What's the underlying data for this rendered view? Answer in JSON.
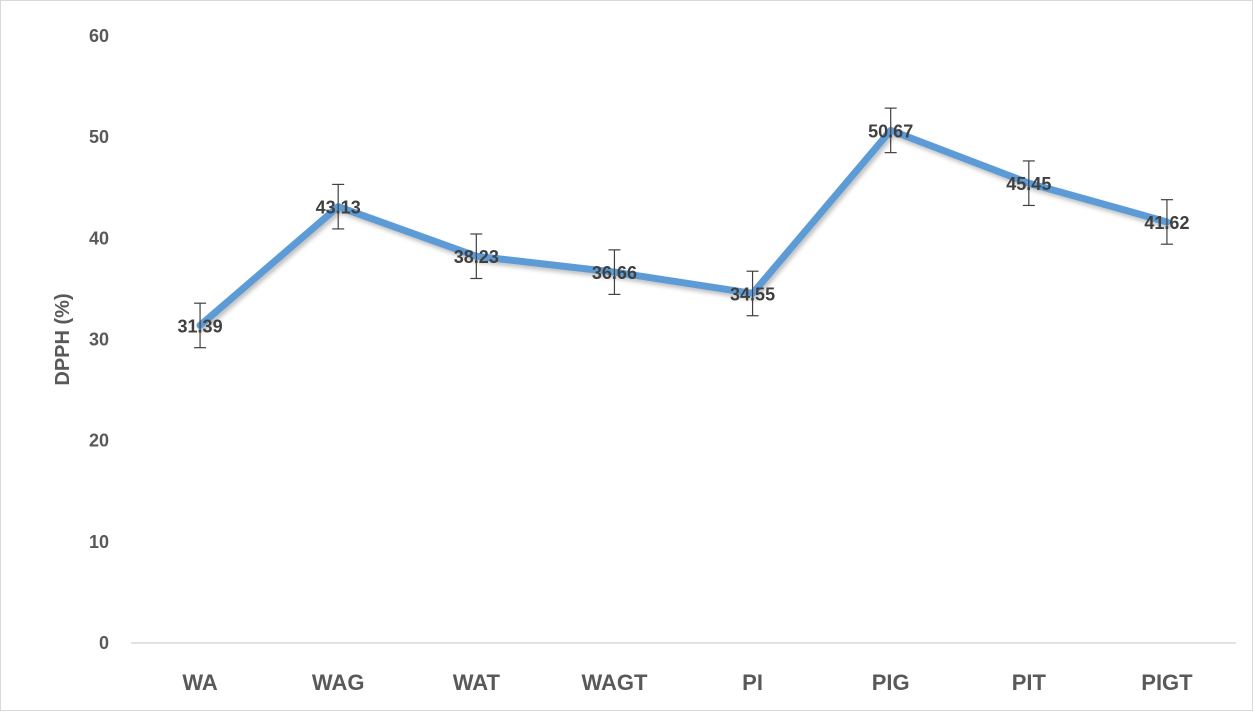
{
  "chart_data": {
    "type": "line",
    "title": "",
    "xlabel": "",
    "ylabel": "DPPH (%)",
    "ylim": [
      0,
      60
    ],
    "yticks": [
      "0",
      "10",
      "20",
      "30",
      "40",
      "50",
      "60"
    ],
    "categories": [
      "WA",
      "WAG",
      "WAT",
      "WAGT",
      "PI",
      "PIG",
      "PIT",
      "PIGT"
    ],
    "series": [
      {
        "values": [
          31.39,
          43.13,
          38.23,
          36.66,
          34.55,
          50.67,
          45.45,
          41.62
        ],
        "labels": [
          "31.39",
          "43.13",
          "38.23",
          "36.66",
          "34.55",
          "50.67",
          "45.45",
          "41.62"
        ],
        "error": [
          2.2,
          2.2,
          2.2,
          2.2,
          2.2,
          2.2,
          2.2,
          2.2
        ],
        "color": "#5b9bd5"
      }
    ],
    "grid": false,
    "legend": "none"
  },
  "colors": {
    "line": "#5b9bd5",
    "axis": "#d9d9d9",
    "text": "#595959",
    "error_bar": "#404040"
  }
}
